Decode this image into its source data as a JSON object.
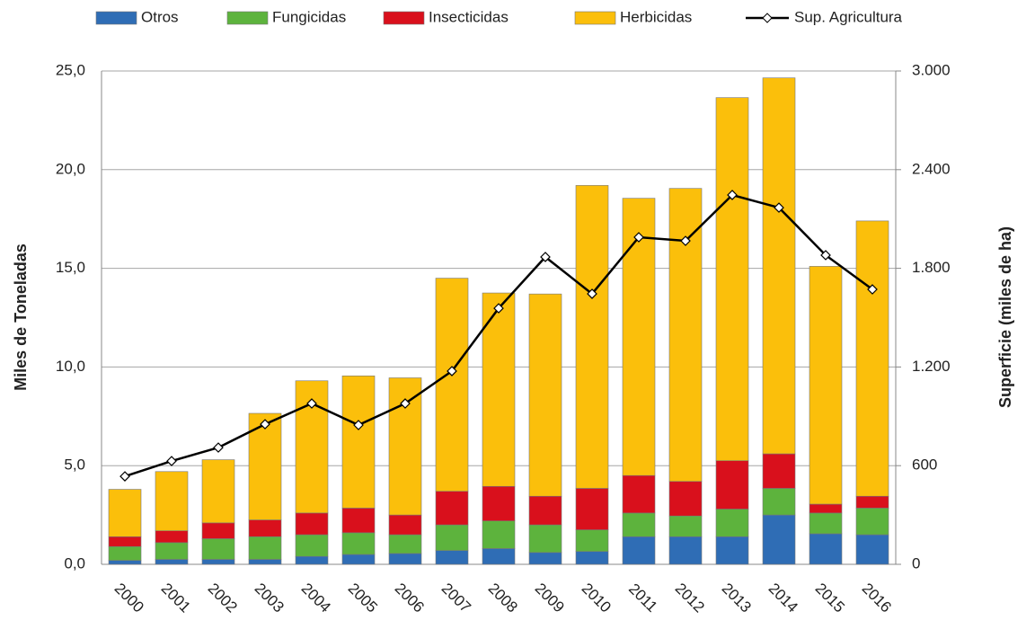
{
  "chart_data": {
    "type": "bar",
    "stacked": true,
    "categories": [
      "2000",
      "2001",
      "2002",
      "2003",
      "2004",
      "2005",
      "2006",
      "2007",
      "2008",
      "2009",
      "2010",
      "2011",
      "2012",
      "2013",
      "2014",
      "2015",
      "2016"
    ],
    "series": [
      {
        "name": "Otros",
        "color": "#2f6db5",
        "values": [
          0.2,
          0.25,
          0.25,
          0.25,
          0.4,
          0.5,
          0.55,
          0.7,
          0.8,
          0.6,
          0.65,
          1.4,
          1.4,
          1.4,
          2.5,
          1.55,
          1.5
        ]
      },
      {
        "name": "Fungicidas",
        "color": "#5db33d",
        "values": [
          0.7,
          0.85,
          1.05,
          1.15,
          1.1,
          1.1,
          0.95,
          1.3,
          1.4,
          1.4,
          1.1,
          1.2,
          1.05,
          1.4,
          1.35,
          1.05,
          1.35
        ]
      },
      {
        "name": "Insecticidas",
        "color": "#d9101c",
        "values": [
          0.5,
          0.6,
          0.8,
          0.85,
          1.1,
          1.25,
          1.0,
          1.7,
          1.75,
          1.45,
          2.1,
          1.9,
          1.75,
          2.45,
          1.75,
          0.45,
          0.6
        ]
      },
      {
        "name": "Herbicidas",
        "color": "#fbbf0b",
        "values": [
          2.4,
          3.0,
          3.2,
          5.4,
          6.7,
          6.7,
          6.95,
          10.8,
          9.8,
          10.25,
          15.35,
          14.05,
          14.85,
          18.4,
          19.05,
          12.05,
          13.95
        ]
      },
      {
        "name": "Sup. Agricultura",
        "type": "line",
        "axis": "y2",
        "color": "#000000",
        "values": [
          535,
          628,
          710,
          852,
          978,
          847,
          978,
          1175,
          1557,
          1869,
          1645,
          1989,
          1967,
          2246,
          2169,
          1880,
          1672
        ]
      }
    ],
    "y_label": "Miles de Toneladas",
    "y2_label": "Superficie (miles de ha)",
    "ylim": [
      0,
      25
    ],
    "yticks": [
      {
        "value": 0,
        "label": "0,0"
      },
      {
        "value": 5,
        "label": "5,0"
      },
      {
        "value": 10,
        "label": "10,0"
      },
      {
        "value": 15,
        "label": "15,0"
      },
      {
        "value": 20,
        "label": "20,0"
      },
      {
        "value": 25,
        "label": "25,0"
      }
    ],
    "y2lim": [
      0,
      3000
    ],
    "y2ticks": [
      0,
      600,
      {
        "value": 1200,
        "label": "1.200"
      },
      {
        "value": 1800,
        "label": "1.800"
      },
      {
        "value": 2400,
        "label": "2.400"
      },
      {
        "value": 3000,
        "label": "3.000"
      }
    ],
    "grid": true,
    "legend": "top"
  }
}
